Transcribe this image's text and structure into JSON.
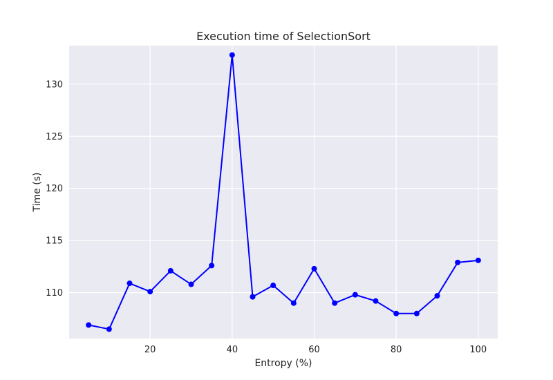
{
  "chart_data": {
    "type": "line",
    "title": "Execution time of SelectionSort",
    "xlabel": "Entropy (%)",
    "ylabel": "Time (s)",
    "xlim": [
      0.25,
      104.75
    ],
    "ylim": [
      105.6,
      133.7
    ],
    "xticks": [
      20,
      40,
      60,
      80,
      100
    ],
    "yticks": [
      110,
      115,
      120,
      125,
      130
    ],
    "grid": true,
    "series": [
      {
        "color": "#0000ff",
        "marker": "circle",
        "x": [
          5,
          10,
          15,
          20,
          25,
          30,
          35,
          40,
          45,
          50,
          55,
          60,
          65,
          70,
          75,
          80,
          85,
          90,
          95,
          100
        ],
        "y": [
          106.9,
          106.5,
          110.9,
          110.1,
          112.1,
          110.8,
          112.6,
          132.8,
          109.6,
          110.7,
          109.0,
          112.3,
          109.0,
          109.8,
          109.2,
          108.0,
          108.0,
          109.7,
          112.9,
          113.1
        ]
      }
    ]
  }
}
